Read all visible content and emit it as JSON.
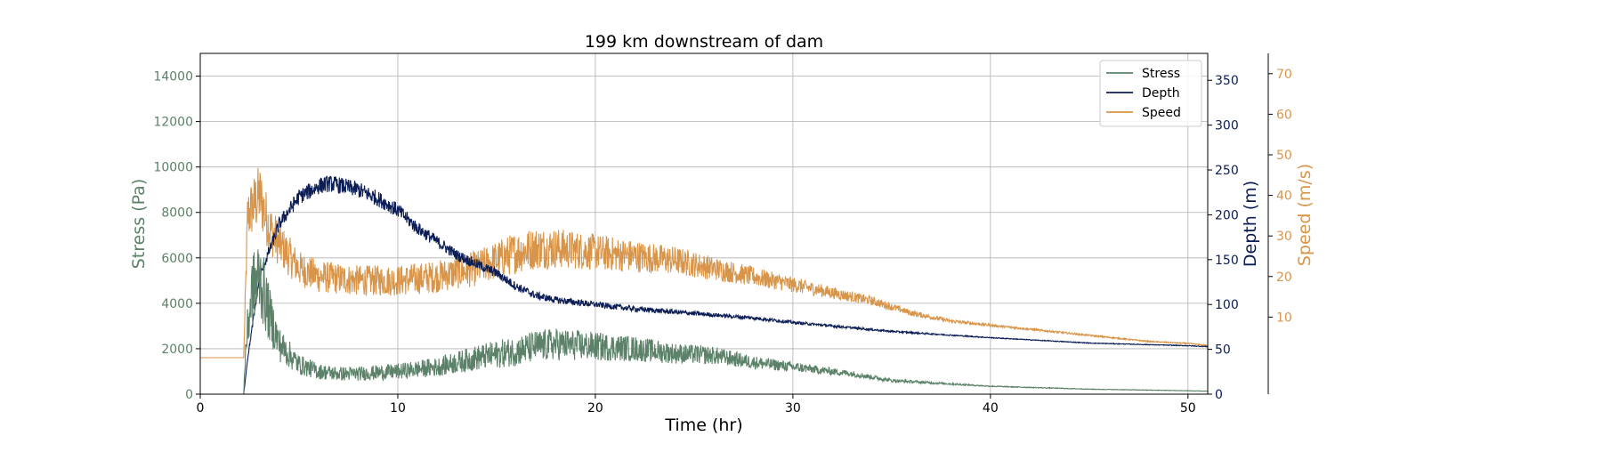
{
  "chart_data": {
    "type": "line",
    "title": "199 km downstream of dam",
    "xlabel": "Time (hr)",
    "xlim": [
      0,
      51
    ],
    "xticks": [
      0,
      10,
      20,
      30,
      40,
      50
    ],
    "grid": true,
    "legend_position": "top-right",
    "axes": [
      {
        "id": "stress",
        "label": "Stress (Pa)",
        "side": "left",
        "ylim": [
          0,
          15000
        ],
        "ticks": [
          0,
          2000,
          4000,
          6000,
          8000,
          10000,
          12000,
          14000
        ],
        "color": "#5b8268"
      },
      {
        "id": "depth",
        "label": "Depth (m)",
        "side": "right",
        "ylim": [
          0,
          380
        ],
        "ticks": [
          0,
          50,
          100,
          150,
          200,
          250,
          300,
          350
        ],
        "color": "#0b1d55"
      },
      {
        "id": "speed",
        "label": "Speed (m/s)",
        "side": "right-outer",
        "ylim": [
          -9,
          75
        ],
        "ticks": [
          10,
          20,
          30,
          40,
          50,
          60,
          70
        ],
        "color": "#d8954a"
      }
    ],
    "series": [
      {
        "name": "Stress",
        "axis": "stress",
        "color": "#5b8268",
        "noise": 0.35,
        "x": [
          0,
          2.2,
          2.3,
          2.6,
          3,
          3.5,
          4,
          5,
          6,
          7,
          8,
          10,
          12,
          14,
          16,
          17,
          18,
          20,
          22,
          24,
          26,
          28,
          30,
          33,
          35,
          38,
          40,
          45,
          50,
          51
        ],
        "y": [
          0,
          0,
          2000,
          4500,
          5200,
          3500,
          2200,
          1300,
          1000,
          900,
          900,
          1000,
          1200,
          1600,
          1900,
          2100,
          2200,
          2100,
          2000,
          1800,
          1700,
          1400,
          1200,
          900,
          600,
          450,
          350,
          220,
          150,
          130
        ]
      },
      {
        "name": "Depth",
        "axis": "depth",
        "color": "#0b1d55",
        "noise": 0.04,
        "x": [
          0,
          2.2,
          2.4,
          3,
          4,
          5,
          6,
          6.5,
          7,
          8,
          9,
          10,
          11,
          12,
          13,
          14,
          15,
          16,
          17,
          18,
          20,
          22,
          25,
          28,
          30,
          35,
          40,
          45,
          50,
          51
        ],
        "y": [
          0,
          0,
          40,
          130,
          190,
          220,
          232,
          235,
          233,
          228,
          218,
          205,
          185,
          170,
          155,
          145,
          135,
          120,
          110,
          105,
          100,
          95,
          90,
          85,
          80,
          70,
          63,
          57,
          54,
          53
        ]
      },
      {
        "name": "Speed",
        "axis": "speed",
        "color": "#d8954a",
        "noise": 0.2,
        "x": [
          0,
          2.2,
          2.4,
          3,
          3.5,
          4,
          5,
          6,
          8,
          10,
          12,
          14,
          15,
          16,
          17,
          18,
          20,
          22,
          24,
          26,
          28,
          30,
          32,
          34,
          36,
          38,
          40,
          44,
          48,
          50,
          51
        ],
        "y": [
          0,
          0,
          35,
          40,
          32,
          28,
          22,
          20,
          19,
          19,
          20,
          22,
          24,
          26,
          27,
          27,
          26,
          25,
          24,
          22,
          20,
          18,
          16,
          14,
          11,
          9,
          8,
          6,
          4,
          3.5,
          3
        ]
      }
    ]
  }
}
